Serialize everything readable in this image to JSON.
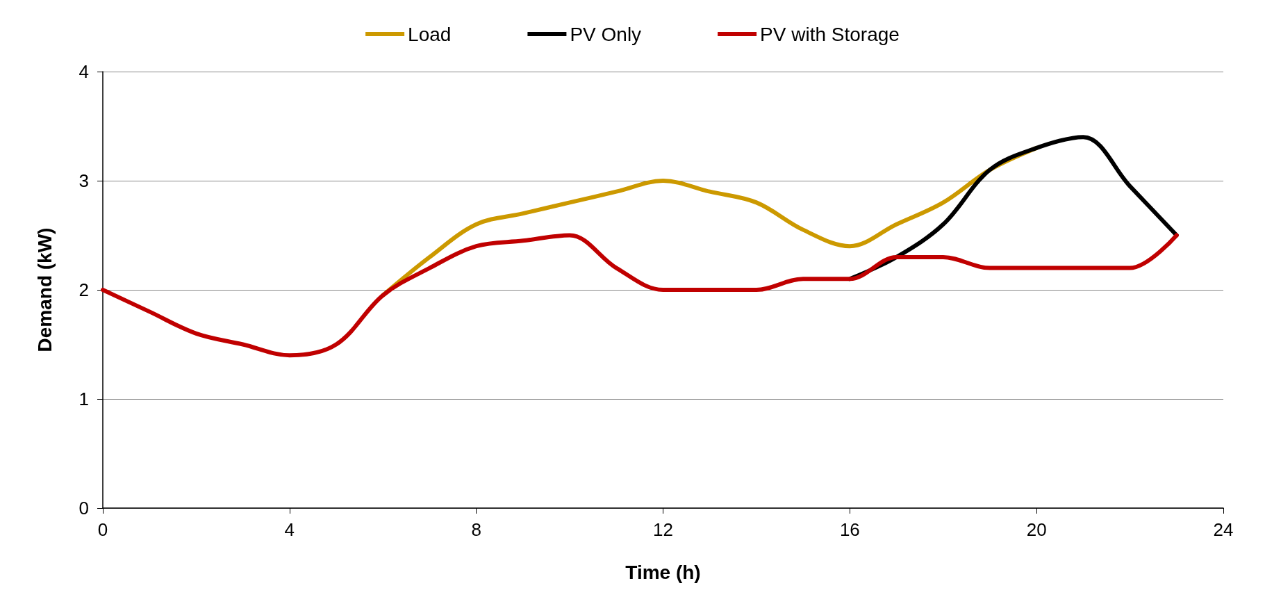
{
  "chart_data": {
    "type": "line",
    "xlabel": "Time (h)",
    "ylabel": "Demand (kW)",
    "x": [
      0,
      1,
      2,
      3,
      4,
      5,
      6,
      7,
      8,
      9,
      10,
      11,
      12,
      13,
      14,
      15,
      16,
      17,
      18,
      19,
      20,
      21,
      22,
      23
    ],
    "series": [
      {
        "name": "Load",
        "color": "#cc9900",
        "values": [
          null,
          null,
          null,
          null,
          null,
          null,
          1.95,
          2.3,
          2.6,
          2.7,
          2.8,
          2.9,
          3.0,
          2.9,
          2.8,
          2.55,
          2.4,
          2.6,
          2.8,
          3.1,
          3.3,
          null,
          null,
          null
        ]
      },
      {
        "name": "PV Only",
        "color": "#000000",
        "values": [
          null,
          null,
          null,
          null,
          null,
          null,
          null,
          null,
          null,
          null,
          null,
          null,
          null,
          null,
          null,
          null,
          2.1,
          2.3,
          2.6,
          3.1,
          3.3,
          3.4,
          2.95,
          2.5
        ]
      },
      {
        "name": "PV with Storage",
        "color": "#c00000",
        "values": [
          2.0,
          1.8,
          1.6,
          1.5,
          1.4,
          1.5,
          1.95,
          2.2,
          2.4,
          2.45,
          2.5,
          2.2,
          2.0,
          2.0,
          2.0,
          2.1,
          2.1,
          2.3,
          2.3,
          2.2,
          2.2,
          2.2,
          2.2,
          2.5
        ]
      }
    ],
    "xlim": [
      0,
      24
    ],
    "xticks": [
      0,
      4,
      8,
      12,
      16,
      20,
      24
    ],
    "ylim": [
      0,
      4
    ],
    "yticks": [
      0,
      1,
      2,
      3,
      4
    ],
    "grid": "y",
    "legend": "top",
    "marker": "none",
    "line_style": "solid"
  }
}
